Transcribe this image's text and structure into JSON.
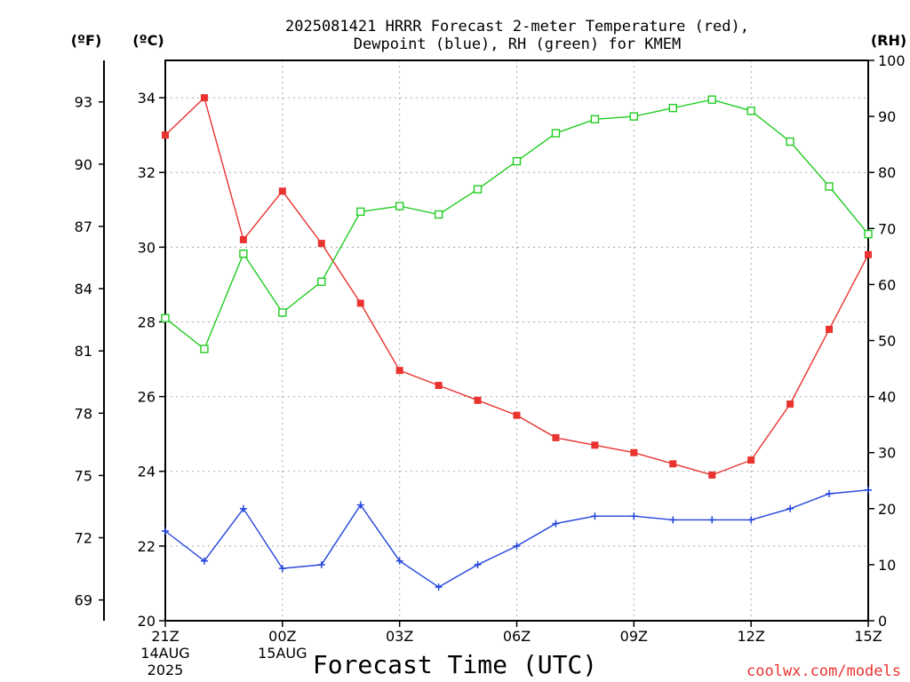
{
  "chart_data": {
    "type": "line",
    "title_line1": "2025081421 HRRR Forecast 2-meter Temperature (red),",
    "title_line2": "Dewpoint (blue), RH (green) for KMEM",
    "xlabel": "Forecast Time (UTC)",
    "credit": "coolwx.com/models",
    "units": {
      "fahrenheit": "(ºF)",
      "celsius": "(ºC)",
      "rh": "(RH)"
    },
    "x_hours": [
      0,
      1,
      2,
      3,
      4,
      5,
      6,
      7,
      8,
      9,
      10,
      11,
      12,
      13,
      14,
      15,
      16,
      17,
      18
    ],
    "xlim": [
      0,
      18
    ],
    "x_ticks": [
      {
        "hour": 0,
        "lines": [
          "21Z",
          "14AUG",
          "2025"
        ]
      },
      {
        "hour": 3,
        "lines": [
          "00Z",
          "15AUG"
        ]
      },
      {
        "hour": 6,
        "lines": [
          "03Z"
        ]
      },
      {
        "hour": 9,
        "lines": [
          "06Z"
        ]
      },
      {
        "hour": 12,
        "lines": [
          "09Z"
        ]
      },
      {
        "hour": 15,
        "lines": [
          "12Z"
        ]
      },
      {
        "hour": 18,
        "lines": [
          "15Z"
        ]
      }
    ],
    "celsius_axis": {
      "lim": [
        20,
        35
      ],
      "ticks": [
        "20",
        "22",
        "24",
        "26",
        "28",
        "30",
        "32",
        "34"
      ]
    },
    "fahrenheit_axis": {
      "ticks": [
        "69",
        "72",
        "75",
        "78",
        "81",
        "84",
        "87",
        "90",
        "93"
      ]
    },
    "rh_axis": {
      "lim": [
        0,
        100
      ],
      "ticks": [
        "0",
        "10",
        "20",
        "30",
        "40",
        "50",
        "60",
        "70",
        "80",
        "90",
        "100"
      ]
    },
    "grid": true,
    "series": [
      {
        "name": "Temperature (red)",
        "axis": "celsius",
        "color": "#e8332f",
        "marker": "filled-square",
        "values": [
          33.0,
          34.0,
          30.2,
          31.5,
          30.1,
          28.5,
          26.7,
          26.3,
          25.9,
          25.5,
          24.9,
          24.7,
          24.5,
          24.2,
          23.9,
          24.3,
          25.8,
          27.8,
          29.8
        ]
      },
      {
        "name": "Dewpoint (blue)",
        "axis": "celsius",
        "color": "#2244dd",
        "marker": "plus",
        "values": [
          22.4,
          21.6,
          23.0,
          21.4,
          21.5,
          23.1,
          21.6,
          20.9,
          21.5,
          22.0,
          22.6,
          22.8,
          22.8,
          22.7,
          22.7,
          22.7,
          23.0,
          23.4,
          23.5
        ]
      },
      {
        "name": "RH (green)",
        "axis": "rh",
        "color": "#22cc22",
        "marker": "open-square",
        "values": [
          54.0,
          48.5,
          65.5,
          55.0,
          60.5,
          73.0,
          74.0,
          72.5,
          77.0,
          82.0,
          87.0,
          89.5,
          90.0,
          91.5,
          93.0,
          91.0,
          85.5,
          77.5,
          69.0
        ]
      }
    ]
  }
}
